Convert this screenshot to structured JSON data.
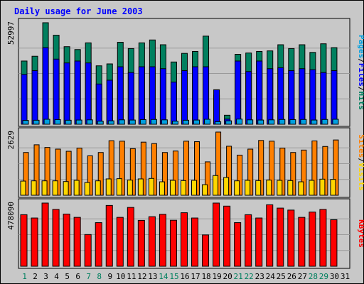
{
  "chart_data": {
    "type": "bar",
    "title": "Daily usage for June 2003",
    "categories": [
      "1",
      "2",
      "3",
      "4",
      "5",
      "6",
      "7",
      "8",
      "9",
      "10",
      "11",
      "12",
      "13",
      "14",
      "15",
      "16",
      "17",
      "18",
      "19",
      "20",
      "21",
      "22",
      "23",
      "24",
      "25",
      "26",
      "27",
      "28",
      "29",
      "30",
      "31"
    ],
    "weekend_days": [
      1,
      7,
      8,
      14,
      15,
      21,
      22,
      28,
      29
    ],
    "panels": [
      {
        "scale_label": "52997",
        "ylim": [
          0,
          52997
        ],
        "side_label": [
          "Pages",
          "/",
          "Files",
          "/",
          "Hits"
        ],
        "side_label_colors": [
          "#00a0e0",
          "#000000",
          "#0000ff",
          "#000000",
          "#00805f"
        ],
        "series": [
          {
            "name": "Hits",
            "color": "#00805f",
            "values": [
              33000,
              35500,
              52997,
              46500,
              40500,
              39000,
              42500,
              30500,
              31500,
              42800,
              39500,
              42500,
              44000,
              41500,
              32500,
              37000,
              38000,
              46000,
              15200,
              4700,
              36500,
              37200,
              38000,
              38300,
              41500,
              39500,
              41500,
              37500,
              42000,
              40000,
              0
            ]
          },
          {
            "name": "Files",
            "color": "#0000ff",
            "values": [
              26000,
              28000,
              40000,
              34000,
              32000,
              33000,
              32000,
              21000,
              23000,
              30000,
              27000,
              30000,
              30000,
              29000,
              22000,
              28000,
              30000,
              30000,
              18000,
              2700,
              33000,
              27500,
              33000,
              29000,
              29500,
              28000,
              29000,
              28500,
              27000,
              28000,
              0
            ]
          },
          {
            "name": "Pages",
            "color": "#00a0e0",
            "values": [
              2000,
              2100,
              2600,
              2400,
              2100,
              2200,
              2300,
              1600,
              1800,
              2300,
              2200,
              2400,
              2500,
              2300,
              1600,
              2100,
              2200,
              2600,
              1300,
              1800,
              2700,
              2300,
              2200,
              2300,
              2500,
              2400,
              2500,
              2200,
              2500,
              2600,
              0
            ]
          }
        ]
      },
      {
        "scale_label": "2629",
        "ylim": [
          0,
          2629
        ],
        "side_label": [
          "Sites",
          "/",
          "Visits"
        ],
        "side_label_colors": [
          "#ff8000",
          "#000000",
          "#ffd700"
        ],
        "series": [
          {
            "name": "Visits",
            "color": "#ff8000",
            "values": [
              1780,
              2100,
              1990,
              1920,
              1830,
              1960,
              1640,
              1780,
              2270,
              2250,
              1940,
              2210,
              2150,
              1780,
              1840,
              2250,
              2230,
              1390,
              2629,
              2040,
              1670,
              1920,
              2280,
              2250,
              1960,
              1780,
              1880,
              2260,
              2030,
              2300,
              0
            ]
          },
          {
            "name": "Sites",
            "color": "#ffd700",
            "values": [
              590,
              600,
              600,
              600,
              570,
              620,
              530,
              600,
              680,
              690,
              630,
              680,
              700,
              560,
              620,
              610,
              620,
              440,
              820,
              740,
              600,
              620,
              610,
              630,
              620,
              610,
              560,
              620,
              670,
              660,
              0
            ]
          }
        ]
      },
      {
        "scale_label": "478090",
        "ylim": [
          0,
          478090
        ],
        "side_label": [
          "KBytes"
        ],
        "side_label_colors": [
          "#ff0000"
        ],
        "series": [
          {
            "name": "KBytes",
            "color": "#ff0000",
            "values": [
              390000,
              365000,
              478090,
              430000,
              395000,
              370000,
              240000,
              330000,
              460000,
              370000,
              445000,
              347000,
              375000,
              393000,
              348000,
              405000,
              365000,
              237000,
              478090,
              455000,
              330000,
              390000,
              365000,
              465000,
              440000,
              425000,
              370000,
              410000,
              430000,
              352000,
              0
            ]
          }
        ]
      }
    ]
  }
}
